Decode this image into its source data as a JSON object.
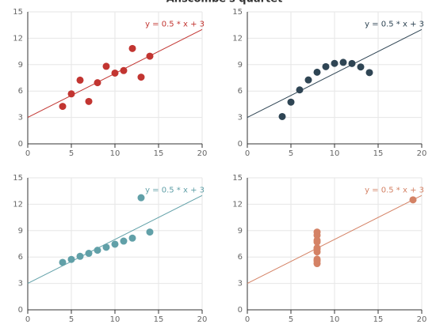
{
  "chart_data": [
    {
      "type": "scatter",
      "title": "Anscombe's quartet",
      "color": "#c23531",
      "x": [
        10,
        8,
        13,
        9,
        11,
        14,
        6,
        4,
        12,
        7,
        5
      ],
      "values": [
        8.04,
        6.95,
        7.58,
        8.81,
        8.33,
        9.96,
        7.24,
        4.26,
        10.84,
        4.82,
        5.68
      ],
      "xlim": [
        0,
        20
      ],
      "ylim": [
        0,
        15
      ],
      "xticks": [
        0,
        5,
        10,
        15,
        20
      ],
      "yticks": [
        0,
        3,
        6,
        9,
        12,
        15
      ],
      "grid": true,
      "line": {
        "x": [
          0,
          20
        ],
        "y": [
          3,
          13
        ],
        "label": "y = 0.5 * x + 3"
      }
    },
    {
      "type": "scatter",
      "color": "#2f4554",
      "x": [
        10,
        8,
        13,
        9,
        11,
        14,
        6,
        4,
        12,
        7,
        5
      ],
      "values": [
        9.14,
        8.14,
        8.74,
        8.77,
        9.26,
        8.1,
        6.13,
        3.1,
        9.13,
        7.26,
        4.74
      ],
      "xlim": [
        0,
        20
      ],
      "ylim": [
        0,
        15
      ],
      "xticks": [
        0,
        5,
        10,
        15,
        20
      ],
      "yticks": [
        0,
        3,
        6,
        9,
        12,
        15
      ],
      "grid": true,
      "line": {
        "x": [
          0,
          20
        ],
        "y": [
          3,
          13
        ],
        "label": "y = 0.5 * x + 3"
      }
    },
    {
      "type": "scatter",
      "color": "#61a0a8",
      "x": [
        10,
        8,
        13,
        9,
        11,
        14,
        6,
        4,
        12,
        7,
        5
      ],
      "values": [
        7.46,
        6.77,
        12.74,
        7.11,
        7.81,
        8.84,
        6.08,
        5.39,
        8.15,
        6.42,
        5.73
      ],
      "xlim": [
        0,
        20
      ],
      "ylim": [
        0,
        15
      ],
      "xticks": [
        0,
        5,
        10,
        15,
        20
      ],
      "yticks": [
        0,
        3,
        6,
        9,
        12,
        15
      ],
      "grid": true,
      "line": {
        "x": [
          0,
          20
        ],
        "y": [
          3,
          13
        ],
        "label": "y = 0.5 * x + 3"
      }
    },
    {
      "type": "scatter",
      "color": "#d48265",
      "x": [
        8,
        8,
        8,
        8,
        8,
        8,
        8,
        19,
        8,
        8,
        8
      ],
      "values": [
        6.58,
        5.76,
        7.71,
        8.84,
        8.47,
        7.04,
        5.25,
        12.5,
        5.56,
        7.91,
        6.89
      ],
      "xlim": [
        0,
        20
      ],
      "ylim": [
        0,
        15
      ],
      "xticks": [
        0,
        5,
        10,
        15,
        20
      ],
      "yticks": [
        0,
        3,
        6,
        9,
        12,
        15
      ],
      "grid": true,
      "line": {
        "x": [
          0,
          20
        ],
        "y": [
          3,
          13
        ],
        "label": "y = 0.5 * x + 3"
      }
    }
  ]
}
